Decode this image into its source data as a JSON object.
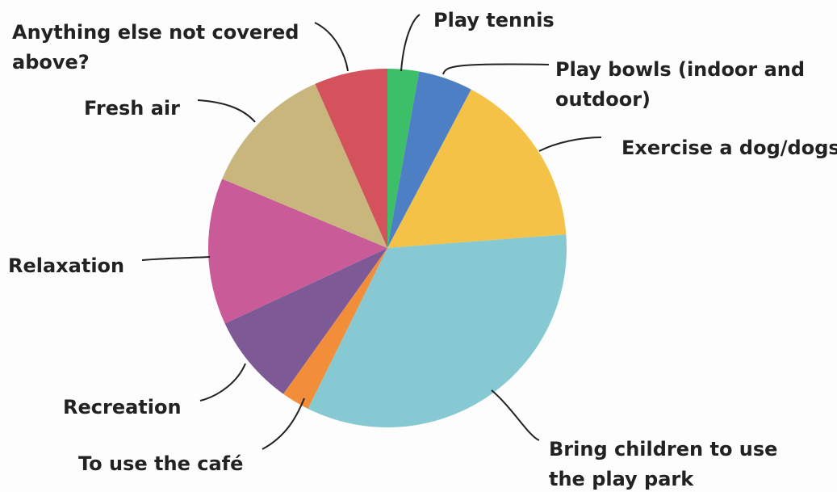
{
  "chart_data": {
    "type": "pie",
    "start_angle_deg": 0,
    "direction": "clockwise",
    "slices": [
      {
        "label": "Play tennis",
        "value": 3.0,
        "color": "#3dbf6a"
      },
      {
        "label": "Play bowls (indoor and outdoor)",
        "value": 5.2,
        "color": "#4d7fc4"
      },
      {
        "label": "Exercise a dog/dogs",
        "value": 17.0,
        "color": "#f4c246"
      },
      {
        "label": "Bring children to use the play park",
        "value": 35.5,
        "color": "#86c9d3"
      },
      {
        "label": "To use the café",
        "value": 2.7,
        "color": "#f28e3a"
      },
      {
        "label": "Recreation",
        "value": 8.7,
        "color": "#7d5a95"
      },
      {
        "label": "Relaxation",
        "value": 14.0,
        "color": "#c95b98"
      },
      {
        "label": "Fresh air",
        "value": 12.8,
        "color": "#c9b67d"
      },
      {
        "label": "Anything else not covered above?",
        "value": 7.0,
        "color": "#d4525b"
      }
    ]
  }
}
